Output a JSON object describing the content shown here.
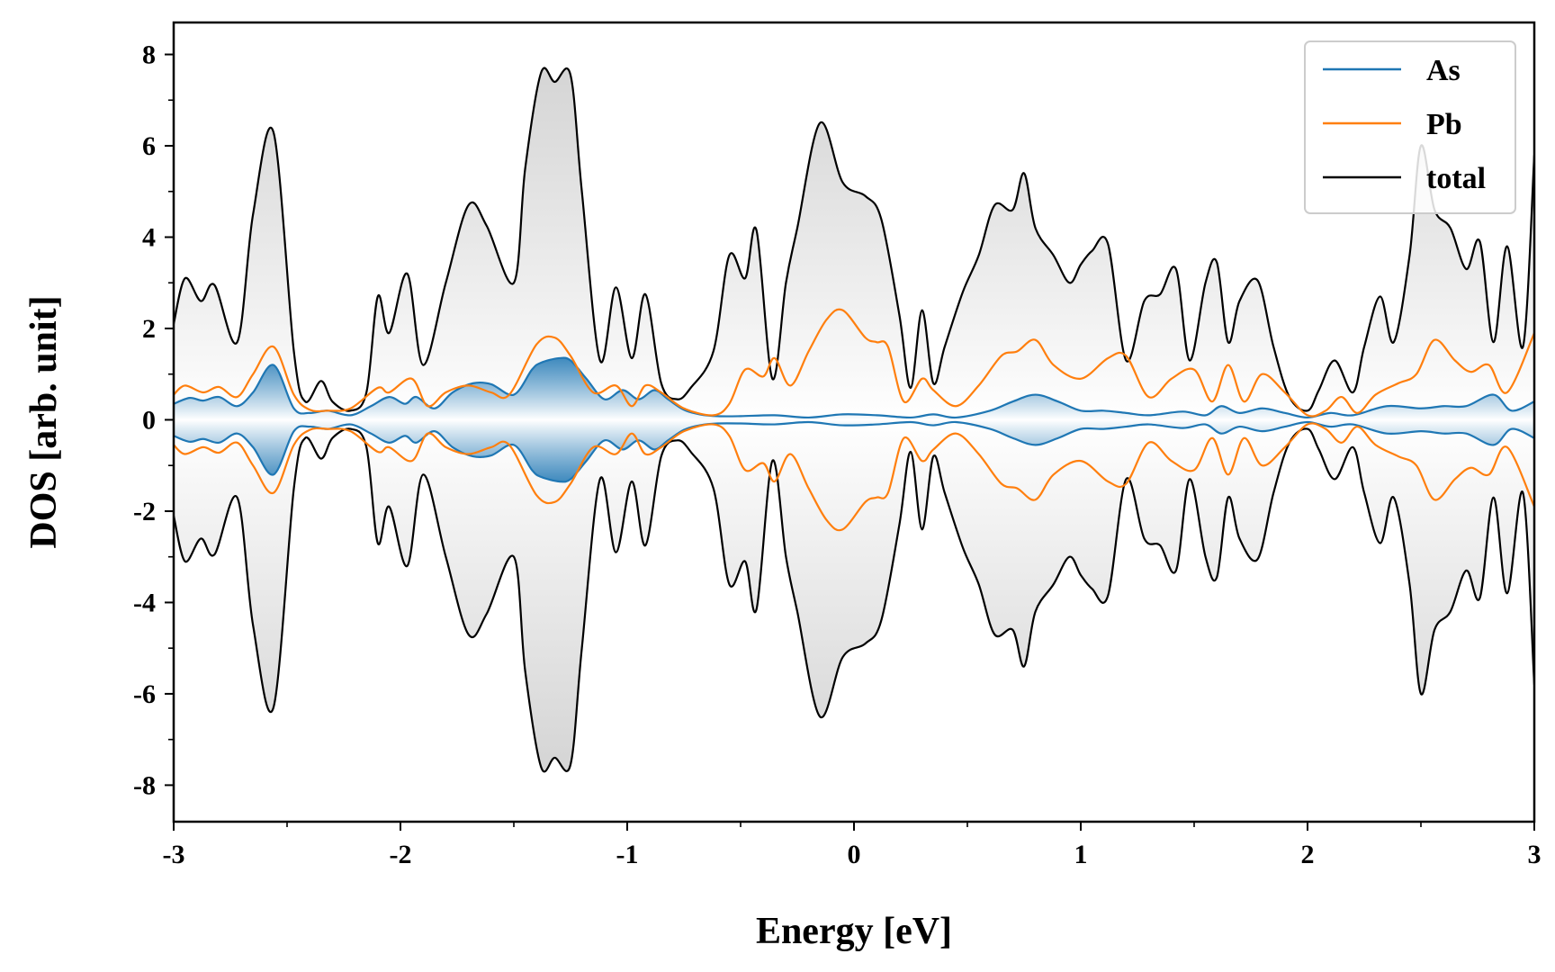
{
  "chart_data": {
    "type": "line",
    "title": "",
    "xlabel": "Energy [eV]",
    "ylabel": "DOS [arb. unit]",
    "xlim": [
      -3,
      3
    ],
    "ylim": [
      -8.8,
      8.7
    ],
    "grid": false,
    "legend_position": "top-right",
    "xticks": [
      -3,
      -2,
      -1,
      0,
      1,
      2,
      3
    ],
    "xtick_labels": [
      "-3",
      "-2",
      "-1",
      "0",
      "1",
      "2",
      "3"
    ],
    "yticks": [
      8,
      6,
      4,
      2,
      0,
      -2,
      -4,
      -6,
      -8
    ],
    "ytick_labels": [
      "8",
      "6",
      "4",
      "2",
      "0",
      "-2",
      "-4",
      "-6",
      "-8"
    ],
    "mirrored_about_zero": true,
    "series": [
      {
        "name": "As",
        "color": "#1f77b4",
        "fill": "blue gradient",
        "x": [
          -3.0,
          -2.93,
          -2.87,
          -2.8,
          -2.72,
          -2.65,
          -2.56,
          -2.47,
          -2.4,
          -2.32,
          -2.22,
          -2.13,
          -2.05,
          -1.98,
          -1.93,
          -1.85,
          -1.77,
          -1.68,
          -1.6,
          -1.5,
          -1.42,
          -1.38,
          -1.3,
          -1.25,
          -1.18,
          -1.1,
          -1.02,
          -0.95,
          -0.88,
          -0.82,
          -0.75,
          -0.68,
          -0.6,
          -0.5,
          -0.35,
          -0.2,
          -0.05,
          0.1,
          0.25,
          0.35,
          0.45,
          0.6,
          0.7,
          0.8,
          0.9,
          1.0,
          1.1,
          1.2,
          1.3,
          1.45,
          1.55,
          1.62,
          1.7,
          1.8,
          1.9,
          2.0,
          2.1,
          2.2,
          2.35,
          2.5,
          2.6,
          2.7,
          2.82,
          2.9,
          3.0
        ],
        "values": [
          0.35,
          0.48,
          0.42,
          0.5,
          0.3,
          0.6,
          1.2,
          0.25,
          0.15,
          0.2,
          0.1,
          0.3,
          0.5,
          0.35,
          0.5,
          0.25,
          0.6,
          0.8,
          0.78,
          0.55,
          1.1,
          1.25,
          1.35,
          1.3,
          0.9,
          0.45,
          0.65,
          0.45,
          0.65,
          0.45,
          0.22,
          0.12,
          0.08,
          0.08,
          0.1,
          0.05,
          0.12,
          0.1,
          0.05,
          0.12,
          0.05,
          0.2,
          0.4,
          0.55,
          0.4,
          0.2,
          0.2,
          0.15,
          0.1,
          0.18,
          0.1,
          0.3,
          0.15,
          0.25,
          0.15,
          0.05,
          0.15,
          0.1,
          0.3,
          0.25,
          0.3,
          0.3,
          0.55,
          0.2,
          0.4
        ]
      },
      {
        "name": "Pb",
        "color": "#ff7f0e",
        "x": [
          -3.0,
          -2.95,
          -2.87,
          -2.8,
          -2.72,
          -2.65,
          -2.56,
          -2.47,
          -2.4,
          -2.32,
          -2.22,
          -2.1,
          -2.05,
          -1.95,
          -1.88,
          -1.8,
          -1.7,
          -1.6,
          -1.52,
          -1.4,
          -1.32,
          -1.25,
          -1.15,
          -1.05,
          -0.98,
          -0.92,
          -0.85,
          -0.75,
          -0.62,
          -0.55,
          -0.48,
          -0.4,
          -0.35,
          -0.28,
          -0.2,
          -0.12,
          -0.05,
          0.05,
          0.1,
          0.15,
          0.22,
          0.3,
          0.35,
          0.45,
          0.55,
          0.65,
          0.72,
          0.8,
          0.88,
          1.0,
          1.12,
          1.2,
          1.3,
          1.4,
          1.5,
          1.58,
          1.65,
          1.72,
          1.8,
          1.9,
          2.0,
          2.08,
          2.15,
          2.22,
          2.3,
          2.4,
          2.48,
          2.56,
          2.65,
          2.72,
          2.8,
          2.88,
          3.0
        ],
        "values": [
          0.55,
          0.75,
          0.6,
          0.72,
          0.5,
          1.0,
          1.6,
          0.55,
          0.22,
          0.2,
          0.25,
          0.7,
          0.6,
          0.9,
          0.3,
          0.6,
          0.75,
          0.6,
          0.55,
          1.65,
          1.8,
          1.4,
          0.6,
          0.75,
          0.3,
          0.75,
          0.6,
          0.25,
          0.1,
          0.35,
          1.1,
          0.95,
          1.35,
          0.75,
          1.5,
          2.2,
          2.4,
          1.8,
          1.7,
          1.6,
          0.4,
          0.9,
          0.65,
          0.3,
          0.75,
          1.4,
          1.5,
          1.75,
          1.2,
          0.9,
          1.35,
          1.4,
          0.5,
          0.9,
          1.1,
          0.4,
          1.2,
          0.4,
          1.0,
          0.6,
          0.1,
          0.2,
          0.5,
          0.15,
          0.55,
          0.8,
          1.0,
          1.75,
          1.3,
          1.05,
          1.2,
          0.6,
          1.9
        ]
      },
      {
        "name": "total",
        "color": "#000000",
        "fill": "light gray",
        "x": [
          -3.0,
          -2.95,
          -2.88,
          -2.82,
          -2.72,
          -2.65,
          -2.56,
          -2.47,
          -2.42,
          -2.35,
          -2.3,
          -2.22,
          -2.15,
          -2.1,
          -2.05,
          -1.97,
          -1.9,
          -1.8,
          -1.7,
          -1.62,
          -1.5,
          -1.45,
          -1.38,
          -1.32,
          -1.25,
          -1.2,
          -1.12,
          -1.05,
          -0.98,
          -0.92,
          -0.85,
          -0.78,
          -0.72,
          -0.62,
          -0.55,
          -0.48,
          -0.43,
          -0.36,
          -0.3,
          -0.25,
          -0.15,
          -0.05,
          0.05,
          0.12,
          0.2,
          0.25,
          0.3,
          0.35,
          0.4,
          0.48,
          0.55,
          0.62,
          0.7,
          0.75,
          0.8,
          0.88,
          0.95,
          1.0,
          1.05,
          1.12,
          1.2,
          1.28,
          1.35,
          1.42,
          1.48,
          1.55,
          1.6,
          1.65,
          1.7,
          1.78,
          1.85,
          1.92,
          2.0,
          2.05,
          2.12,
          2.2,
          2.25,
          2.32,
          2.38,
          2.45,
          2.5,
          2.56,
          2.63,
          2.7,
          2.76,
          2.82,
          2.88,
          2.95,
          3.0
        ],
        "values": [
          2.1,
          3.1,
          2.6,
          2.95,
          1.7,
          4.5,
          6.3,
          1.5,
          0.4,
          0.85,
          0.4,
          0.2,
          0.6,
          2.7,
          1.9,
          3.2,
          1.2,
          3.0,
          4.7,
          4.25,
          3.0,
          5.5,
          7.6,
          7.4,
          7.55,
          5.0,
          1.3,
          2.9,
          1.35,
          2.75,
          0.8,
          0.45,
          0.7,
          1.5,
          3.6,
          3.1,
          4.15,
          0.9,
          3.0,
          4.2,
          6.5,
          5.2,
          4.9,
          4.4,
          2.3,
          0.7,
          2.4,
          0.8,
          1.6,
          2.8,
          3.6,
          4.7,
          4.6,
          5.4,
          4.2,
          3.6,
          3.0,
          3.4,
          3.7,
          3.85,
          1.3,
          2.6,
          2.75,
          3.3,
          1.3,
          3.0,
          3.45,
          1.7,
          2.6,
          3.05,
          1.6,
          0.5,
          0.2,
          0.65,
          1.3,
          0.6,
          1.6,
          2.7,
          1.7,
          3.6,
          6.0,
          4.6,
          4.2,
          3.3,
          3.9,
          1.7,
          3.8,
          1.6,
          5.8
        ]
      }
    ]
  },
  "legend": {
    "items": [
      {
        "label": "As",
        "color": "#1f77b4"
      },
      {
        "label": "Pb",
        "color": "#ff7f0e"
      },
      {
        "label": "total",
        "color": "#000000"
      }
    ]
  }
}
